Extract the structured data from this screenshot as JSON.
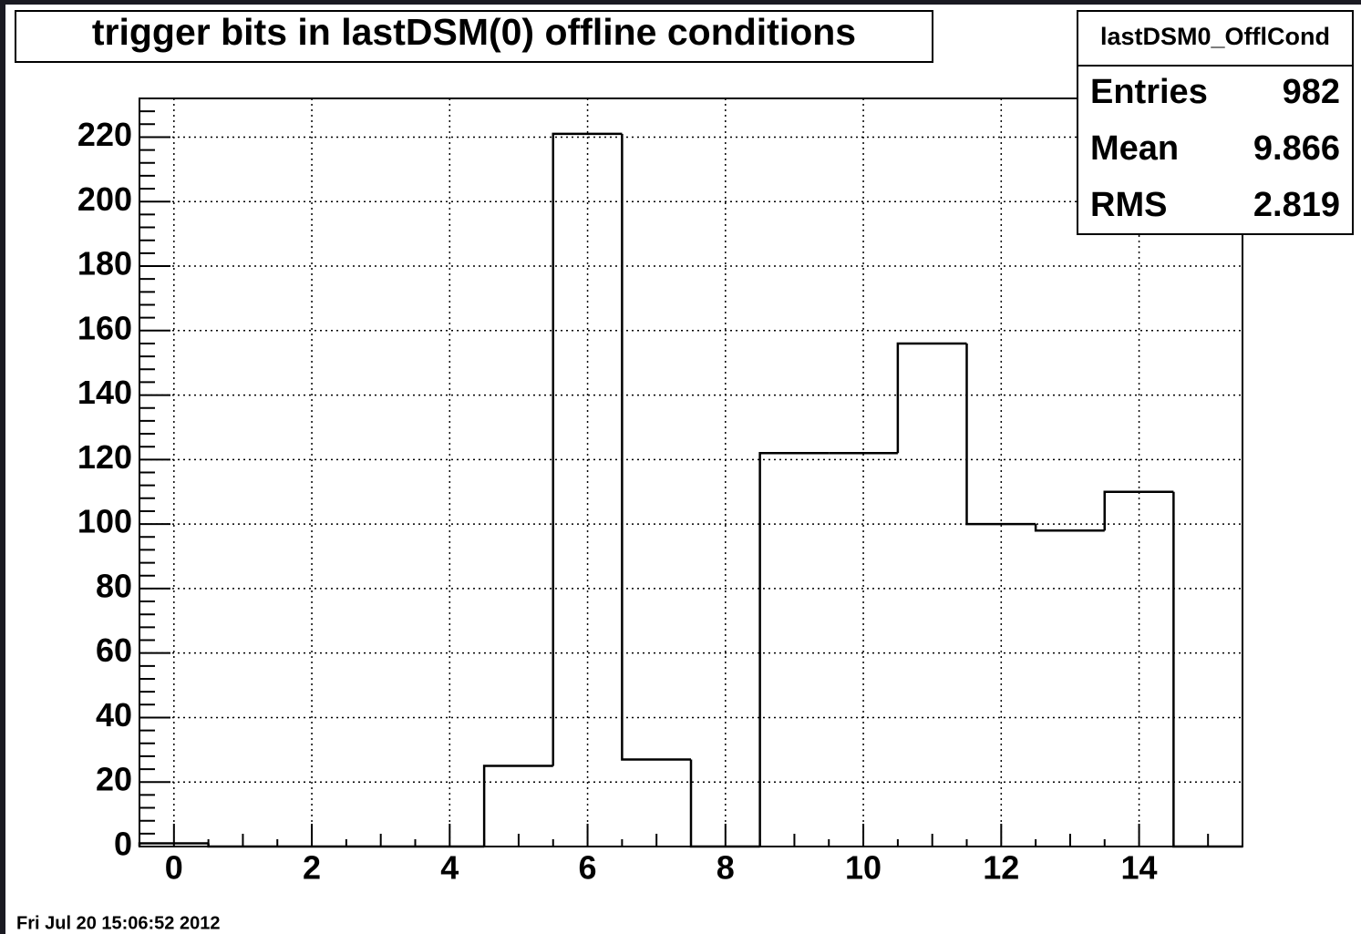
{
  "chart_data": {
    "type": "histogram",
    "title": "trigger bits in lastDSM(0) offline conditions",
    "bins": [
      -0.5,
      0.5,
      1.5,
      2.5,
      3.5,
      4.5,
      5.5,
      6.5,
      7.5,
      8.5,
      9.5,
      10.5,
      11.5,
      12.5,
      13.5,
      14.5,
      15.5
    ],
    "values": [
      1,
      0,
      0,
      0,
      0,
      25,
      221,
      27,
      0,
      122,
      122,
      156,
      100,
      98,
      110,
      0
    ],
    "color": "#000000",
    "xlim": [
      -0.5,
      15.5
    ],
    "xticks": [
      0,
      2,
      4,
      6,
      8,
      10,
      12,
      14
    ],
    "ylim": [
      0,
      232
    ],
    "yticks": [
      0,
      20,
      40,
      60,
      80,
      100,
      120,
      140,
      160,
      180,
      200,
      220
    ],
    "grid": true,
    "stats": {
      "name": "lastDSM0_OfflCond",
      "rows": [
        {
          "label": "Entries",
          "value": 982
        },
        {
          "label": "Mean",
          "value": 9.866
        },
        {
          "label": "RMS",
          "value": 2.819
        }
      ]
    },
    "timestamp": "Fri Jul 20 15:06:52 2012"
  }
}
